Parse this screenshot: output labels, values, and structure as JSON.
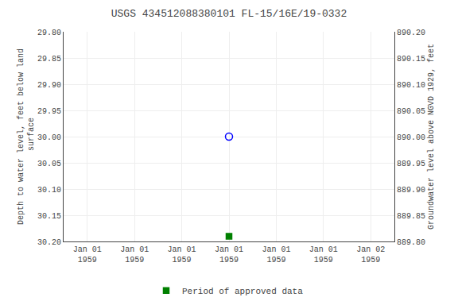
{
  "chart_data": {
    "type": "scatter",
    "title": "USGS 434512088380101 FL-15/16E/19-0332",
    "y_label": "Depth to water level, feet below land\n surface",
    "y2_label": "Groundwater level above NGVD 1929, feet",
    "categories": [
      "Jan 01\n1959",
      "Jan 01\n1959",
      "Jan 01\n1959",
      "Jan 01\n1959",
      "Jan 01\n1959",
      "Jan 01\n1959",
      "Jan 02\n1959"
    ],
    "series": [
      {
        "color": "#0000ff",
        "marker": "circle-open",
        "values": [
          null,
          null,
          null,
          30.0,
          null,
          null,
          null
        ]
      },
      {
        "name": "Period of approved data",
        "color": "#008000",
        "marker": "square",
        "values": [
          null,
          null,
          null,
          30.19,
          null,
          null,
          null
        ]
      }
    ],
    "ylim": [
      30.2,
      29.8
    ],
    "yticks": [
      {
        "value": 29.8,
        "label": "29.80"
      },
      {
        "value": 29.85,
        "label": "29.85"
      },
      {
        "value": 29.9,
        "label": "29.90"
      },
      {
        "value": 29.95,
        "label": "29.95"
      },
      {
        "value": 30.0,
        "label": "30.00"
      },
      {
        "value": 30.05,
        "label": "30.05"
      },
      {
        "value": 30.1,
        "label": "30.10"
      },
      {
        "value": 30.15,
        "label": "30.15"
      },
      {
        "value": 30.2,
        "label": "30.20"
      }
    ],
    "y2lim": [
      889.8,
      890.2
    ],
    "y2ticks": [
      {
        "value": 890.2,
        "label": "890.20"
      },
      {
        "value": 890.15,
        "label": "890.15"
      },
      {
        "value": 890.1,
        "label": "890.10"
      },
      {
        "value": 890.05,
        "label": "890.05"
      },
      {
        "value": 890.0,
        "label": "890.00"
      },
      {
        "value": 889.95,
        "label": "889.95"
      },
      {
        "value": 889.9,
        "label": "889.90"
      },
      {
        "value": 889.85,
        "label": "889.85"
      },
      {
        "value": 889.8,
        "label": "889.80"
      }
    ],
    "grid": true,
    "legend": "bottom"
  }
}
